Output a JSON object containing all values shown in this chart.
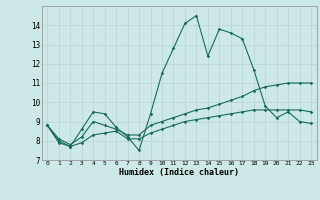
{
  "xlabel": "Humidex (Indice chaleur)",
  "ylabel": "",
  "bg_color": "#cce9e8",
  "grid_color": "#b8d8d6",
  "line_color": "#1a6b5a",
  "xlim": [
    -0.5,
    23.5
  ],
  "ylim": [
    7,
    15
  ],
  "yticks": [
    7,
    8,
    9,
    10,
    11,
    12,
    13,
    14
  ],
  "xticks": [
    0,
    1,
    2,
    3,
    4,
    5,
    6,
    7,
    8,
    9,
    10,
    11,
    12,
    13,
    14,
    15,
    16,
    17,
    18,
    19,
    20,
    21,
    22,
    23
  ],
  "series1": {
    "x": [
      0,
      1,
      2,
      3,
      4,
      5,
      6,
      7,
      8,
      9,
      10,
      11,
      12,
      13,
      14,
      15,
      16,
      17,
      18,
      19,
      20,
      21,
      22,
      23
    ],
    "y": [
      8.8,
      8.0,
      7.7,
      8.6,
      9.5,
      9.4,
      8.7,
      8.2,
      7.5,
      9.4,
      11.5,
      12.8,
      14.1,
      14.5,
      12.4,
      13.8,
      13.6,
      13.3,
      11.7,
      9.8,
      9.2,
      9.5,
      9.0,
      8.9
    ]
  },
  "series2": {
    "x": [
      0,
      1,
      2,
      3,
      4,
      5,
      6,
      7,
      8,
      9,
      10,
      11,
      12,
      13,
      14,
      15,
      16,
      17,
      18,
      19,
      20,
      21,
      22,
      23
    ],
    "y": [
      8.8,
      8.1,
      7.8,
      8.2,
      9.0,
      8.8,
      8.6,
      8.3,
      8.3,
      8.8,
      9.0,
      9.2,
      9.4,
      9.6,
      9.7,
      9.9,
      10.1,
      10.3,
      10.6,
      10.8,
      10.9,
      11.0,
      11.0,
      11.0
    ]
  },
  "series3": {
    "x": [
      0,
      1,
      2,
      3,
      4,
      5,
      6,
      7,
      8,
      9,
      10,
      11,
      12,
      13,
      14,
      15,
      16,
      17,
      18,
      19,
      20,
      21,
      22,
      23
    ],
    "y": [
      8.8,
      7.9,
      7.7,
      7.9,
      8.3,
      8.4,
      8.5,
      8.1,
      8.1,
      8.4,
      8.6,
      8.8,
      9.0,
      9.1,
      9.2,
      9.3,
      9.4,
      9.5,
      9.6,
      9.6,
      9.6,
      9.6,
      9.6,
      9.5
    ]
  }
}
